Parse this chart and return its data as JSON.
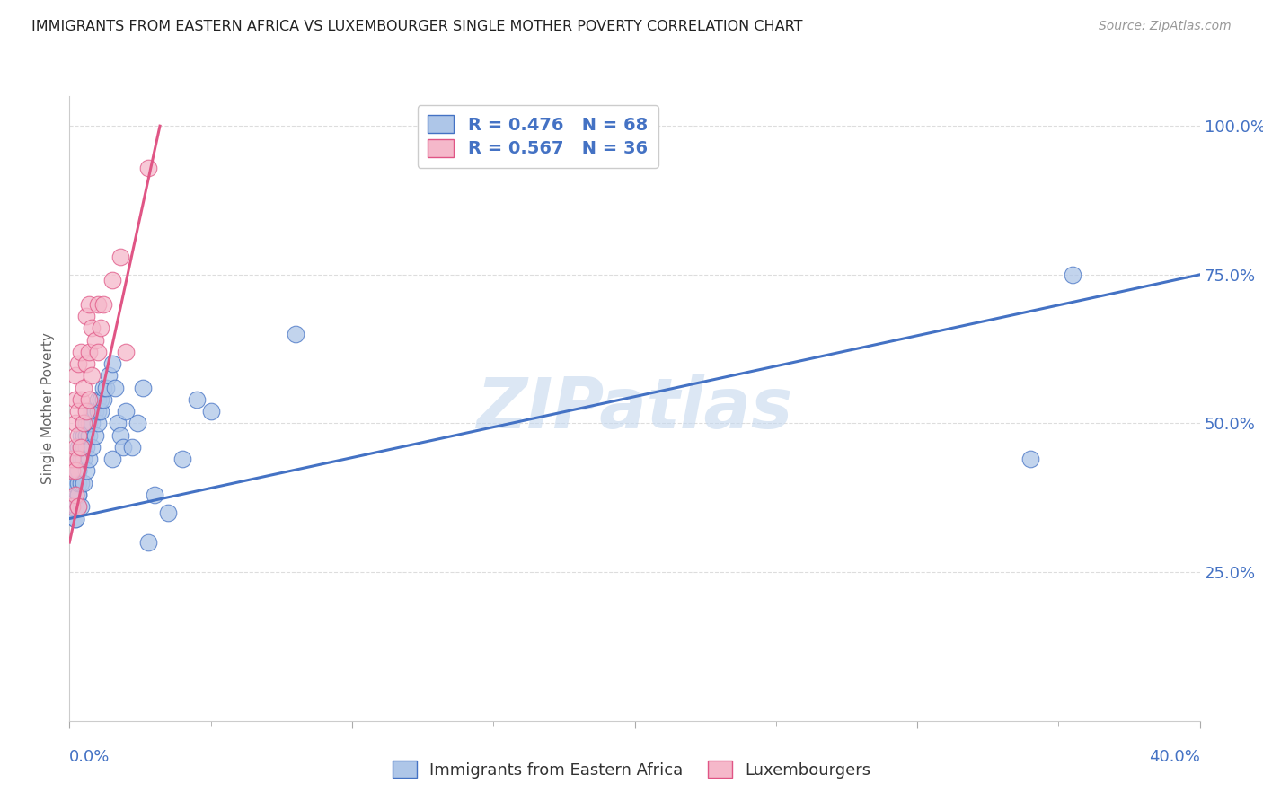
{
  "title": "IMMIGRANTS FROM EASTERN AFRICA VS LUXEMBOURGER SINGLE MOTHER POVERTY CORRELATION CHART",
  "source": "Source: ZipAtlas.com",
  "ylabel": "Single Mother Poverty",
  "watermark": "ZIPatlas",
  "blue_R": 0.476,
  "blue_N": 68,
  "pink_R": 0.567,
  "pink_N": 36,
  "blue_label": "Immigrants from Eastern Africa",
  "pink_label": "Luxembourgers",
  "blue_color": "#aec6e8",
  "pink_color": "#f5b8ca",
  "blue_line_color": "#4472c4",
  "pink_line_color": "#e05585",
  "legend_text_color": "#4472c4",
  "title_color": "#222222",
  "blue_scatter_x": [
    0.001,
    0.001,
    0.001,
    0.001,
    0.002,
    0.002,
    0.002,
    0.002,
    0.002,
    0.002,
    0.003,
    0.003,
    0.003,
    0.003,
    0.003,
    0.003,
    0.003,
    0.003,
    0.004,
    0.004,
    0.004,
    0.004,
    0.004,
    0.005,
    0.005,
    0.005,
    0.005,
    0.005,
    0.006,
    0.006,
    0.006,
    0.006,
    0.007,
    0.007,
    0.007,
    0.008,
    0.008,
    0.008,
    0.009,
    0.009,
    0.01,
    0.01,
    0.01,
    0.011,
    0.011,
    0.012,
    0.012,
    0.013,
    0.014,
    0.015,
    0.015,
    0.016,
    0.017,
    0.018,
    0.019,
    0.02,
    0.022,
    0.024,
    0.026,
    0.028,
    0.03,
    0.035,
    0.04,
    0.045,
    0.05,
    0.08,
    0.34,
    0.355
  ],
  "blue_scatter_y": [
    0.36,
    0.38,
    0.39,
    0.4,
    0.34,
    0.36,
    0.37,
    0.4,
    0.42,
    0.34,
    0.36,
    0.38,
    0.42,
    0.44,
    0.46,
    0.38,
    0.4,
    0.42,
    0.36,
    0.4,
    0.44,
    0.46,
    0.48,
    0.4,
    0.44,
    0.46,
    0.48,
    0.5,
    0.42,
    0.46,
    0.48,
    0.5,
    0.44,
    0.48,
    0.5,
    0.46,
    0.5,
    0.52,
    0.48,
    0.52,
    0.5,
    0.52,
    0.54,
    0.52,
    0.54,
    0.54,
    0.56,
    0.56,
    0.58,
    0.6,
    0.44,
    0.56,
    0.5,
    0.48,
    0.46,
    0.52,
    0.46,
    0.5,
    0.56,
    0.3,
    0.38,
    0.35,
    0.44,
    0.54,
    0.52,
    0.65,
    0.44,
    0.75
  ],
  "pink_scatter_x": [
    0.001,
    0.001,
    0.001,
    0.002,
    0.002,
    0.002,
    0.002,
    0.002,
    0.002,
    0.003,
    0.003,
    0.003,
    0.003,
    0.003,
    0.004,
    0.004,
    0.004,
    0.005,
    0.005,
    0.006,
    0.006,
    0.006,
    0.007,
    0.007,
    0.007,
    0.008,
    0.008,
    0.009,
    0.01,
    0.01,
    0.011,
    0.012,
    0.015,
    0.018,
    0.02,
    0.028
  ],
  "pink_scatter_y": [
    0.36,
    0.42,
    0.44,
    0.38,
    0.42,
    0.46,
    0.5,
    0.54,
    0.58,
    0.36,
    0.44,
    0.48,
    0.52,
    0.6,
    0.46,
    0.54,
    0.62,
    0.5,
    0.56,
    0.52,
    0.6,
    0.68,
    0.54,
    0.62,
    0.7,
    0.58,
    0.66,
    0.64,
    0.62,
    0.7,
    0.66,
    0.7,
    0.74,
    0.78,
    0.62,
    0.93
  ],
  "blue_line_x": [
    0.0,
    0.4
  ],
  "blue_line_y": [
    0.34,
    0.75
  ],
  "pink_line_x": [
    0.0,
    0.032
  ],
  "pink_line_y": [
    0.3,
    1.0
  ],
  "xlim": [
    0.0,
    0.4
  ],
  "ylim": [
    0.0,
    1.05
  ],
  "xtick_positions": [
    0.0,
    0.1,
    0.2,
    0.3,
    0.4
  ],
  "ytick_positions": [
    0.25,
    0.5,
    0.75,
    1.0
  ],
  "grid_color": "#dddddd",
  "background_color": "#ffffff"
}
